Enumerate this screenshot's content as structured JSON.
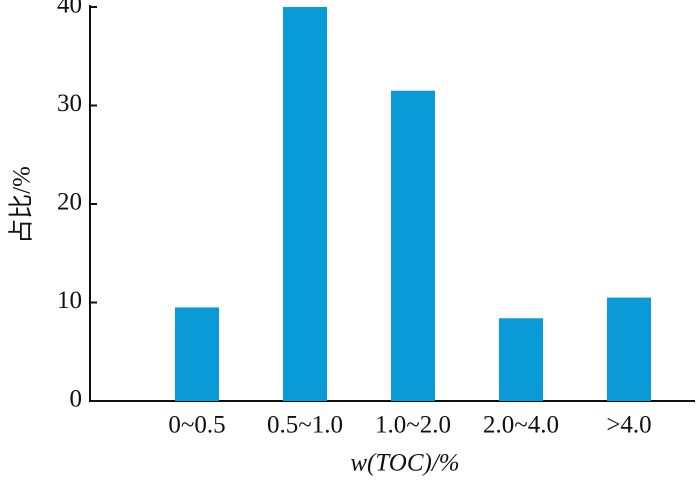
{
  "chart_data": {
    "type": "bar",
    "x_label": "w(TOC)/%",
    "y_label": "占比/%",
    "categories": [
      "0~0.5",
      "0.5~1.0",
      "1.0~2.0",
      "2.0~4.0",
      ">4.0"
    ],
    "values": [
      9.5,
      40,
      31.5,
      8.4,
      10.5
    ],
    "color": "#0a9ad7",
    "ylim": [
      0,
      40
    ],
    "yticks": [
      0,
      10,
      20,
      30,
      40
    ],
    "grid": false
  }
}
